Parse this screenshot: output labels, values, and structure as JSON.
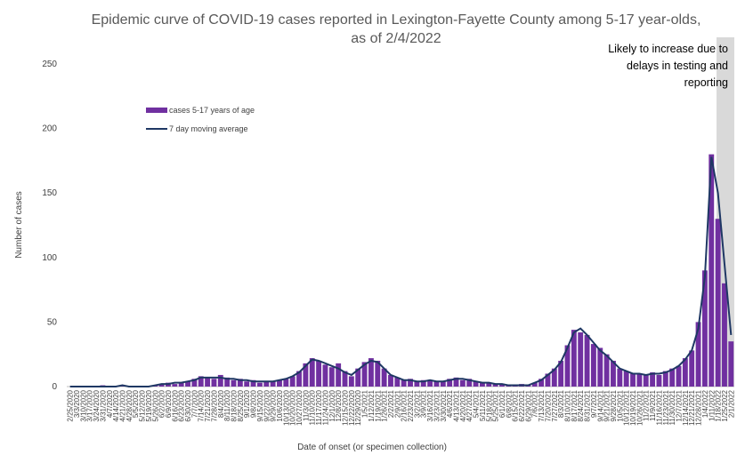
{
  "chart_data": {
    "type": "bar",
    "title": "Epidemic curve of COVID-19 cases reported in Lexington-Fayette County among 5-17 year-olds, as of 2/4/2022",
    "annotation": "Likely to increase due to delays in testing and reporting",
    "x_label": "Date of onset (or specimen collection)",
    "y_label": "Number of cases",
    "categories": [
      "2/25/2020",
      "3/3/2020",
      "3/10/2020",
      "3/17/2020",
      "3/24/2020",
      "3/31/2020",
      "4/7/2020",
      "4/14/2020",
      "4/21/2020",
      "4/28/2020",
      "5/5/2020",
      "5/12/2020",
      "5/19/2020",
      "5/26/2020",
      "6/2/2020",
      "6/9/2020",
      "6/16/2020",
      "6/23/2020",
      "6/30/2020",
      "7/7/2020",
      "7/14/2020",
      "7/21/2020",
      "7/28/2020",
      "8/4/2020",
      "8/11/2020",
      "8/18/2020",
      "8/25/2020",
      "9/1/2020",
      "9/8/2020",
      "9/15/2020",
      "9/22/2020",
      "9/29/2020",
      "10/6/2020",
      "10/13/2020",
      "10/20/2020",
      "10/27/2020",
      "11/3/2020",
      "11/10/2020",
      "11/17/2020",
      "11/24/2020",
      "12/1/2020",
      "12/8/2020",
      "12/15/2020",
      "12/22/2020",
      "12/29/2020",
      "1/5/2021",
      "1/12/2021",
      "1/19/2021",
      "1/26/2021",
      "2/2/2021",
      "2/9/2021",
      "2/16/2021",
      "2/23/2021",
      "3/2/2021",
      "3/9/2021",
      "3/16/2021",
      "3/23/2021",
      "3/30/2021",
      "4/6/2021",
      "4/13/2021",
      "4/20/2021",
      "4/27/2021",
      "5/4/2021",
      "5/11/2021",
      "5/18/2021",
      "5/25/2021",
      "6/1/2021",
      "6/8/2021",
      "6/15/2021",
      "6/22/2021",
      "6/29/2021",
      "7/6/2021",
      "7/13/2021",
      "7/20/2021",
      "7/27/2021",
      "8/3/2021",
      "8/10/2021",
      "8/17/2021",
      "8/24/2021",
      "8/31/2021",
      "9/7/2021",
      "9/14/2021",
      "9/21/2021",
      "9/28/2021",
      "10/5/2021",
      "10/12/2021",
      "10/19/2021",
      "10/26/2021",
      "11/2/2021",
      "11/9/2021",
      "11/16/2021",
      "11/23/2021",
      "11/30/2021",
      "12/7/2021",
      "12/14/2021",
      "12/21/2021",
      "12/28/2021",
      "1/4/2022",
      "1/11/2022",
      "1/18/2022",
      "1/25/2022",
      "2/1/2022"
    ],
    "series": [
      {
        "name": "cases 5-17 years of age",
        "type": "bar",
        "color": "#7030a0",
        "values": [
          0,
          0,
          0,
          0,
          0,
          1,
          0,
          0,
          1,
          0,
          0,
          0,
          0,
          1,
          2,
          3,
          2,
          3,
          4,
          6,
          8,
          7,
          6,
          9,
          7,
          5,
          6,
          4,
          5,
          3,
          4,
          4,
          5,
          6,
          8,
          12,
          18,
          22,
          20,
          17,
          15,
          18,
          12,
          8,
          14,
          19,
          22,
          20,
          14,
          9,
          7,
          5,
          6,
          4,
          5,
          5,
          4,
          4,
          6,
          7,
          5,
          6,
          4,
          3,
          3,
          2,
          2,
          1,
          1,
          2,
          1,
          3,
          6,
          10,
          14,
          20,
          32,
          44,
          42,
          40,
          33,
          30,
          25,
          20,
          14,
          12,
          10,
          10,
          9,
          11,
          9,
          12,
          14,
          16,
          22,
          28,
          50,
          90,
          180,
          130,
          80,
          35
        ]
      },
      {
        "name": "7 day moving average",
        "type": "line",
        "color": "#1f3864",
        "values": [
          0,
          0,
          0,
          0,
          0,
          0,
          0,
          0,
          1,
          0,
          0,
          0,
          0,
          1,
          2,
          2,
          3,
          3,
          4,
          5,
          7,
          7,
          7,
          7,
          6,
          6,
          5,
          5,
          4,
          4,
          4,
          4,
          5,
          6,
          8,
          11,
          16,
          21,
          20,
          18,
          16,
          14,
          11,
          9,
          13,
          17,
          20,
          19,
          14,
          9,
          7,
          5,
          5,
          4,
          4,
          5,
          4,
          4,
          5,
          6,
          6,
          5,
          4,
          3,
          3,
          2,
          2,
          1,
          1,
          1,
          1,
          3,
          5,
          9,
          13,
          19,
          30,
          42,
          45,
          40,
          34,
          28,
          24,
          19,
          14,
          12,
          10,
          10,
          9,
          10,
          10,
          11,
          13,
          16,
          21,
          28,
          45,
          85,
          178,
          150,
          95,
          40
        ]
      }
    ],
    "ylim": [
      0,
      250
    ],
    "yticks": [
      0,
      50,
      100,
      150,
      200,
      250
    ],
    "grid": false
  }
}
